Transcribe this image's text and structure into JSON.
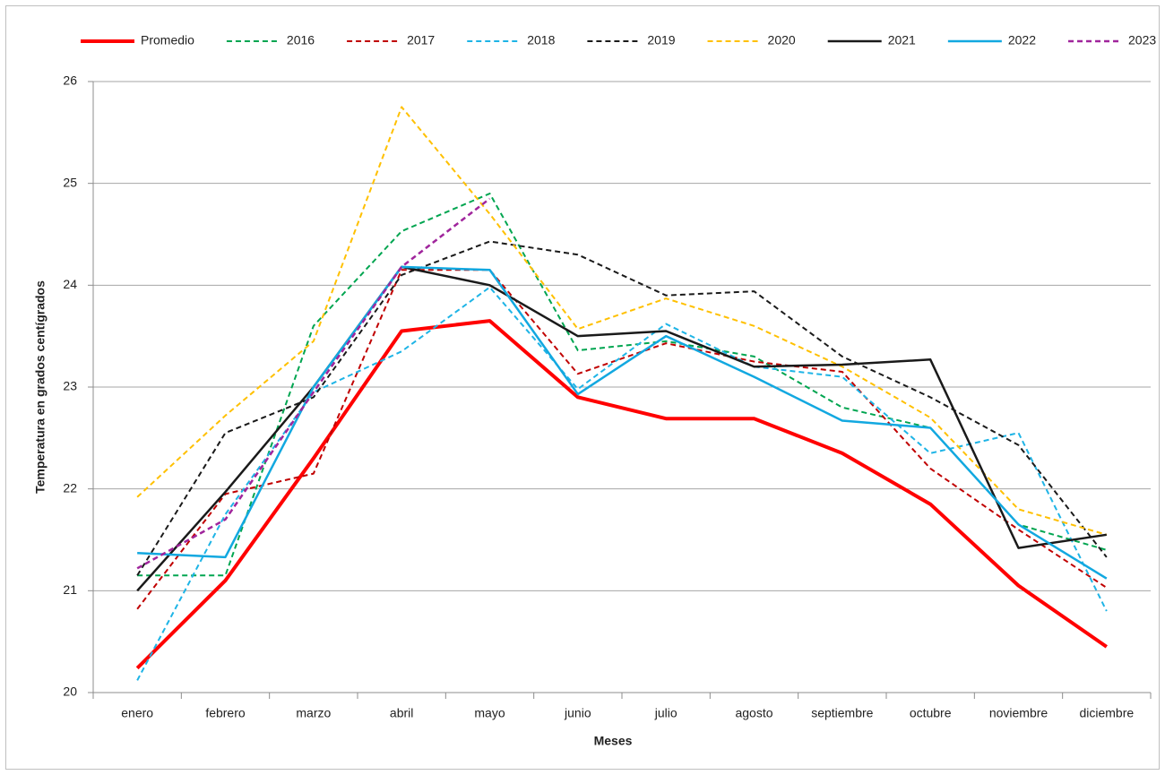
{
  "chart_data": {
    "type": "line",
    "x_label": "Meses",
    "y_label": "Temperatura en grados centígrados",
    "categories": [
      "enero",
      "febrero",
      "marzo",
      "abril",
      "mayo",
      "junio",
      "julio",
      "agosto",
      "septiembre",
      "octubre",
      "noviembre",
      "diciembre"
    ],
    "ylim": [
      20,
      26
    ],
    "yticks": [
      20,
      21,
      22,
      23,
      24,
      25,
      26
    ],
    "grid": true,
    "legend": "top",
    "series": [
      {
        "name": "Promedio",
        "color": "#ff0000",
        "dashed": false,
        "line_width": 4,
        "values": [
          20.24,
          21.1,
          22.3,
          23.55,
          23.65,
          22.9,
          22.69,
          22.69,
          22.35,
          21.85,
          21.05,
          20.45
        ]
      },
      {
        "name": "2016",
        "color": "#00a550",
        "dashed": true,
        "line_width": 2,
        "values": [
          21.15,
          21.15,
          23.6,
          24.53,
          24.9,
          23.36,
          23.45,
          23.3,
          22.8,
          22.6,
          21.65,
          21.4
        ]
      },
      {
        "name": "2017",
        "color": "#c00000",
        "dashed": true,
        "line_width": 2,
        "values": [
          20.82,
          21.95,
          22.15,
          24.15,
          24.15,
          23.13,
          23.43,
          23.25,
          23.15,
          22.2,
          21.6,
          21.03
        ]
      },
      {
        "name": "2018",
        "color": "#1eb4e6",
        "dashed": true,
        "line_width": 2,
        "values": [
          20.12,
          21.75,
          22.95,
          23.35,
          23.98,
          22.98,
          23.62,
          23.2,
          23.1,
          22.35,
          22.55,
          20.8
        ]
      },
      {
        "name": "2019",
        "color": "#1a1a1a",
        "dashed": true,
        "line_width": 2,
        "values": [
          21.15,
          22.55,
          22.9,
          24.1,
          24.43,
          24.3,
          23.9,
          23.94,
          23.3,
          22.9,
          22.43,
          21.33
        ]
      },
      {
        "name": "2020",
        "color": "#ffc000",
        "dashed": true,
        "line_width": 2,
        "values": [
          21.92,
          22.72,
          23.45,
          25.75,
          24.7,
          23.57,
          23.87,
          23.6,
          23.2,
          22.7,
          21.8,
          21.55
        ]
      },
      {
        "name": "2021",
        "color": "#1a1a1a",
        "dashed": false,
        "line_width": 2.5,
        "values": [
          21.0,
          21.97,
          23.0,
          24.18,
          24.0,
          23.5,
          23.55,
          23.2,
          23.22,
          23.27,
          21.42,
          21.55
        ]
      },
      {
        "name": "2022",
        "color": "#12a8e0",
        "dashed": false,
        "line_width": 2.5,
        "values": [
          21.37,
          21.33,
          23.0,
          24.18,
          24.15,
          22.93,
          23.5,
          23.1,
          22.67,
          22.6,
          21.65,
          21.12
        ]
      },
      {
        "name": "2023",
        "color": "#a0259c",
        "dashed": true,
        "line_width": 2.5,
        "values": [
          21.22,
          21.7,
          22.95,
          24.18,
          24.85,
          null,
          null,
          null,
          null,
          null,
          null,
          null
        ]
      }
    ]
  }
}
